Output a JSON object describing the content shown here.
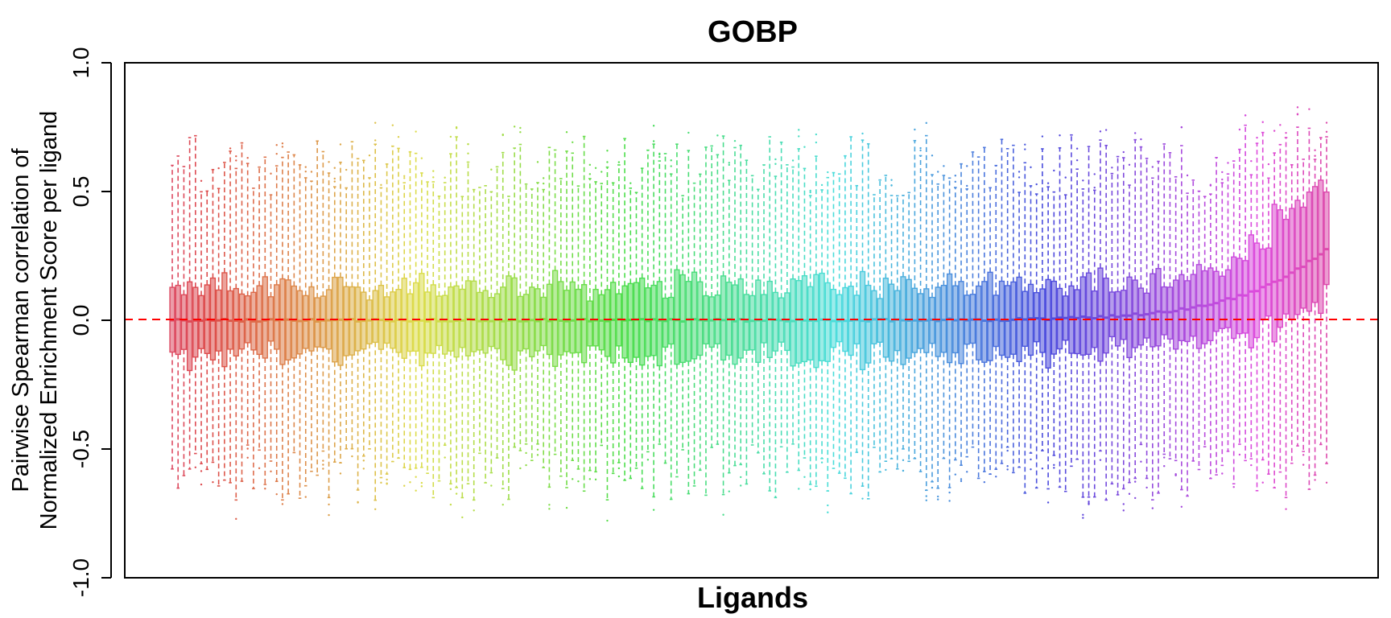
{
  "chart_data": {
    "type": "boxplot",
    "title": "GOBP",
    "xlabel": "Ligands",
    "ylabel_lines": [
      "Pairwise Spearman correlation of",
      "Normalized Enrichment Score per ligand"
    ],
    "ylim": [
      -1.0,
      1.0
    ],
    "yticks": [
      "-1.0",
      "-0.5",
      "0.0",
      "0.5",
      "1.0"
    ],
    "ytick_values": [
      -1.0,
      -0.5,
      0.0,
      0.5,
      1.0
    ],
    "reference_line": {
      "y": 0.0,
      "color": "#ff0000",
      "style": "dashed"
    },
    "grid": false,
    "legend": "none",
    "series_summary": {
      "n_boxes": 200,
      "color_scheme": "hue-gradient (red → orange → olive → green → teal → blue → purple → magenta)",
      "median_start": 0.0,
      "median_end": 0.28,
      "q1_typical": -0.12,
      "q3_typical": 0.12,
      "whisker_low_typical": -0.62,
      "whisker_high_typical": 0.62,
      "max_observed": 0.85,
      "min_observed": -0.78
    }
  }
}
